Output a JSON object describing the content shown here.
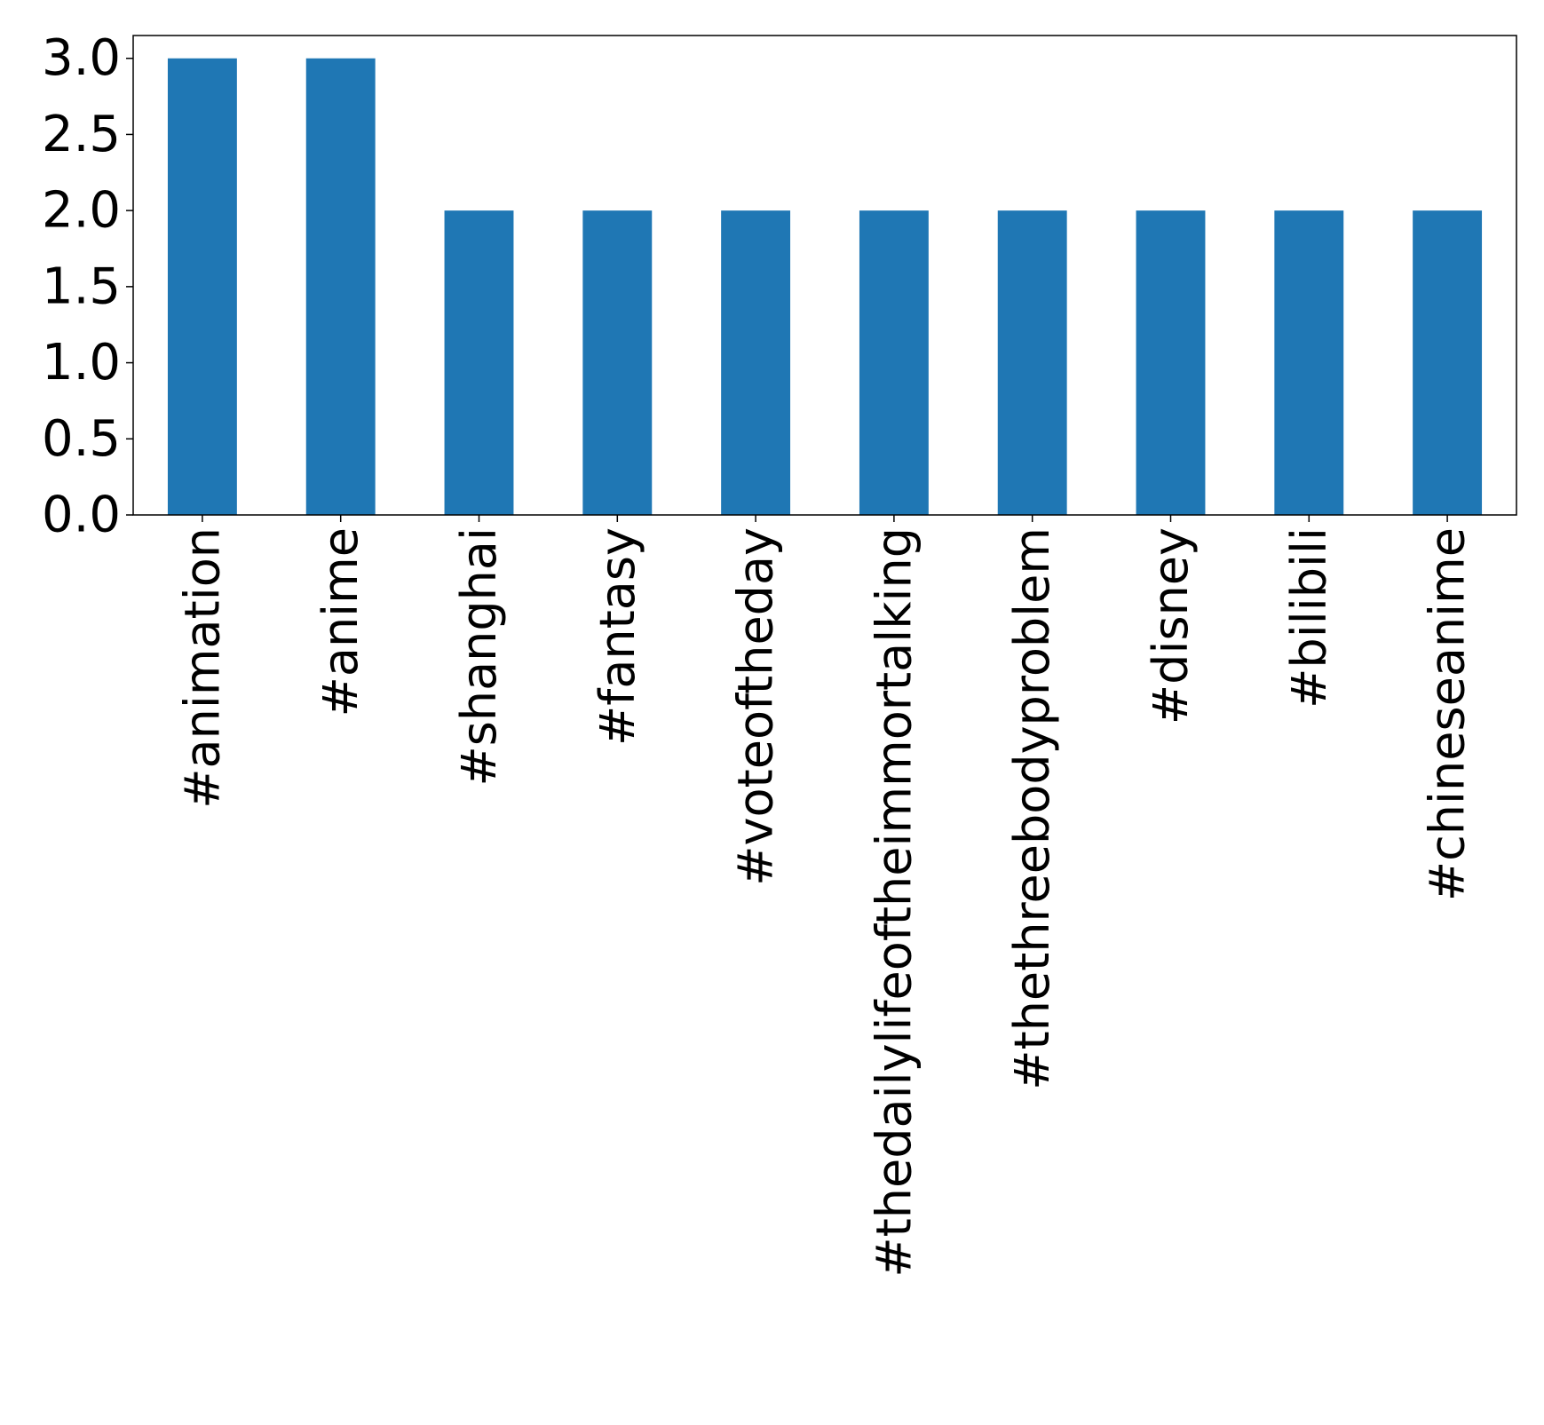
{
  "colors": {
    "bar": "#1f77b4",
    "axis": "#000000",
    "background": "#ffffff"
  },
  "chart_data": {
    "type": "bar",
    "title": "",
    "xlabel": "",
    "ylabel": "",
    "categories": [
      "#animation",
      "#anime",
      "#shanghai",
      "#fantasy",
      "#voteoftheday",
      "#thedailylifeoftheimmortalking",
      "#thethreebodyproblem",
      "#disney",
      "#bilibili",
      "#chineseanime"
    ],
    "values": [
      3,
      3,
      2,
      2,
      2,
      2,
      2,
      2,
      2,
      2
    ],
    "ylim": [
      0,
      3.15
    ],
    "yticks": [
      "0.0",
      "0.5",
      "1.0",
      "1.5",
      "2.0",
      "2.5",
      "3.0"
    ],
    "grid": false,
    "legend": "none"
  }
}
